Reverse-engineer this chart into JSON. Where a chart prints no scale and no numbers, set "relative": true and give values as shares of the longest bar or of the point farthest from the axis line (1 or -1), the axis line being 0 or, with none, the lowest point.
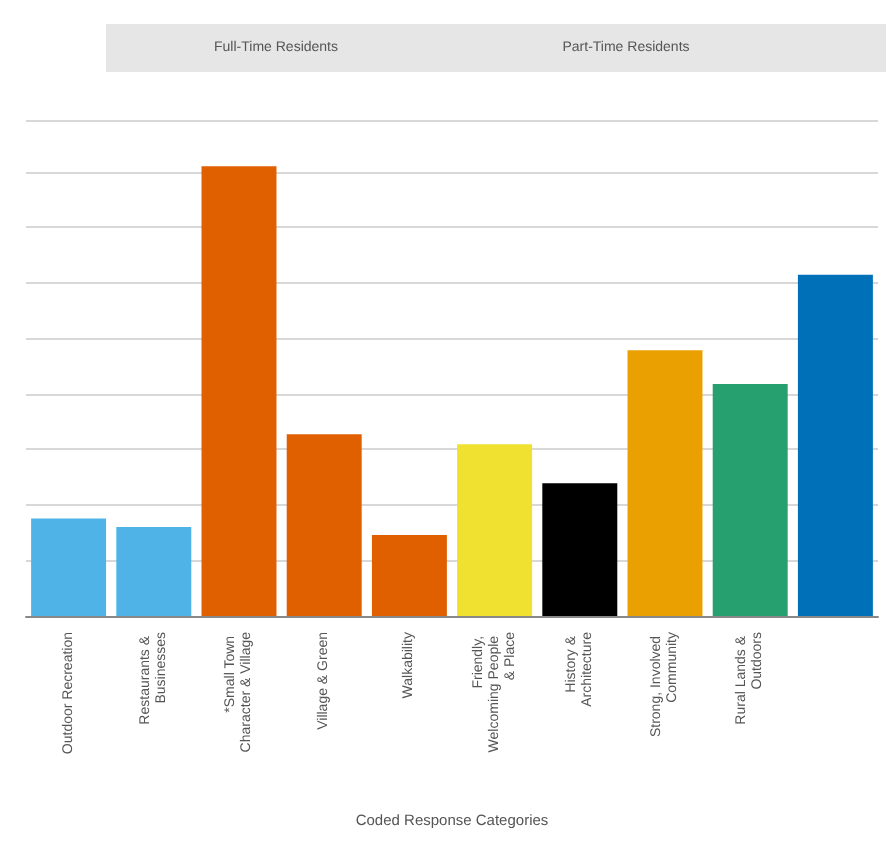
{
  "chart_data": {
    "type": "bar",
    "relative": true,
    "xlabel": "Coded Response Categories",
    "annotations": [
      "Full-Time Residents",
      "Part-Time Residents"
    ],
    "categories": [
      "Outdoor Recreation",
      "Restaurants & Businesses",
      "*Small Town Character & Village",
      "Village & Green",
      "Walkability",
      "Friendly, Welcoming People & Place",
      "History & Architecture",
      "Strong, Involved Community",
      "Rural Lands & Outdoors",
      null
    ],
    "values": [
      0.217,
      0.198,
      1,
      0.404,
      0.18,
      0.382,
      0.295,
      0.591,
      0.516,
      0.759
    ],
    "colors": [
      "#4fb3e8",
      "#4fb3e8",
      "#e06000",
      "#e06000",
      "#e06000",
      "#f0e030",
      "#000000",
      "#eaa000",
      "#27a070",
      "#0070b8"
    ],
    "grid": "y"
  }
}
